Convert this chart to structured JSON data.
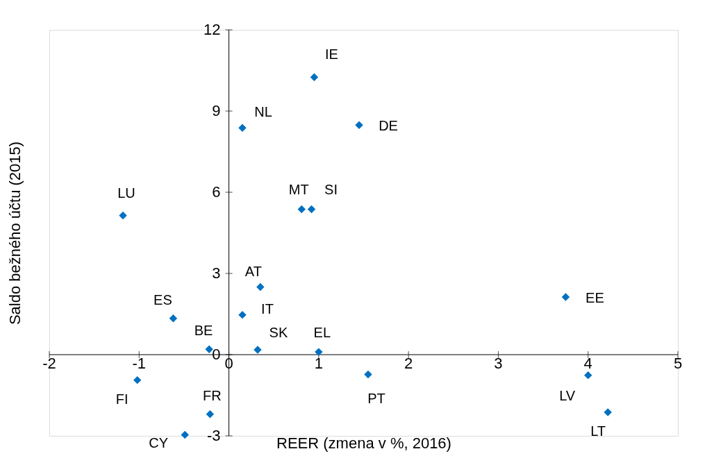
{
  "chart_data": {
    "type": "scatter",
    "xlabel": "REER (zmena v %, 2016)",
    "ylabel": "Saldo bežného účtu (2015)",
    "xlim": [
      -2,
      5
    ],
    "xticks": [
      -2,
      -1,
      0,
      1,
      2,
      3,
      4,
      5
    ],
    "ylim": [
      -3,
      12
    ],
    "yticks": [
      -3,
      0,
      3,
      6,
      9,
      12
    ],
    "grid": false,
    "marker": "diamond",
    "series": [
      {
        "color": "#0070c0",
        "x": [
          0.95,
          0.15,
          1.45,
          -1.18,
          0.81,
          0.92,
          0.35,
          0.15,
          -0.62,
          -0.22,
          0.32,
          1.0,
          3.75,
          -1.02,
          1.55,
          4.0,
          4.22,
          -0.21,
          -0.49
        ],
        "values": [
          10.25,
          8.38,
          8.48,
          5.14,
          5.37,
          5.37,
          2.5,
          1.47,
          1.34,
          0.2,
          0.18,
          0.1,
          2.13,
          -0.94,
          -0.73,
          -0.76,
          -2.13,
          -2.2,
          -2.96
        ]
      }
    ],
    "annotations": [
      {
        "text": "IE",
        "x": 0.95,
        "y": 10.25
      },
      {
        "text": "NL",
        "x": 0.15,
        "y": 8.38
      },
      {
        "text": "DE",
        "x": 1.45,
        "y": 8.48
      },
      {
        "text": "LU",
        "x": -1.18,
        "y": 5.14
      },
      {
        "text": "MT",
        "x": 0.81,
        "y": 5.37
      },
      {
        "text": "SI",
        "x": 0.92,
        "y": 5.37
      },
      {
        "text": "AT",
        "x": 0.35,
        "y": 2.5
      },
      {
        "text": "IT",
        "x": 0.15,
        "y": 1.47
      },
      {
        "text": "ES",
        "x": -0.62,
        "y": 1.34
      },
      {
        "text": "BE",
        "x": -0.22,
        "y": 0.2
      },
      {
        "text": "SK",
        "x": 0.32,
        "y": 0.18
      },
      {
        "text": "EL",
        "x": 1.0,
        "y": 0.1
      },
      {
        "text": "EE",
        "x": 3.75,
        "y": 2.13
      },
      {
        "text": "FI",
        "x": -1.02,
        "y": -0.94
      },
      {
        "text": "PT",
        "x": 1.55,
        "y": -0.73
      },
      {
        "text": "LV",
        "x": 4.0,
        "y": -0.76
      },
      {
        "text": "LT",
        "x": 4.22,
        "y": -2.13
      },
      {
        "text": "FR",
        "x": -0.21,
        "y": -2.2
      },
      {
        "text": "CY",
        "x": -0.49,
        "y": -2.96
      }
    ]
  }
}
